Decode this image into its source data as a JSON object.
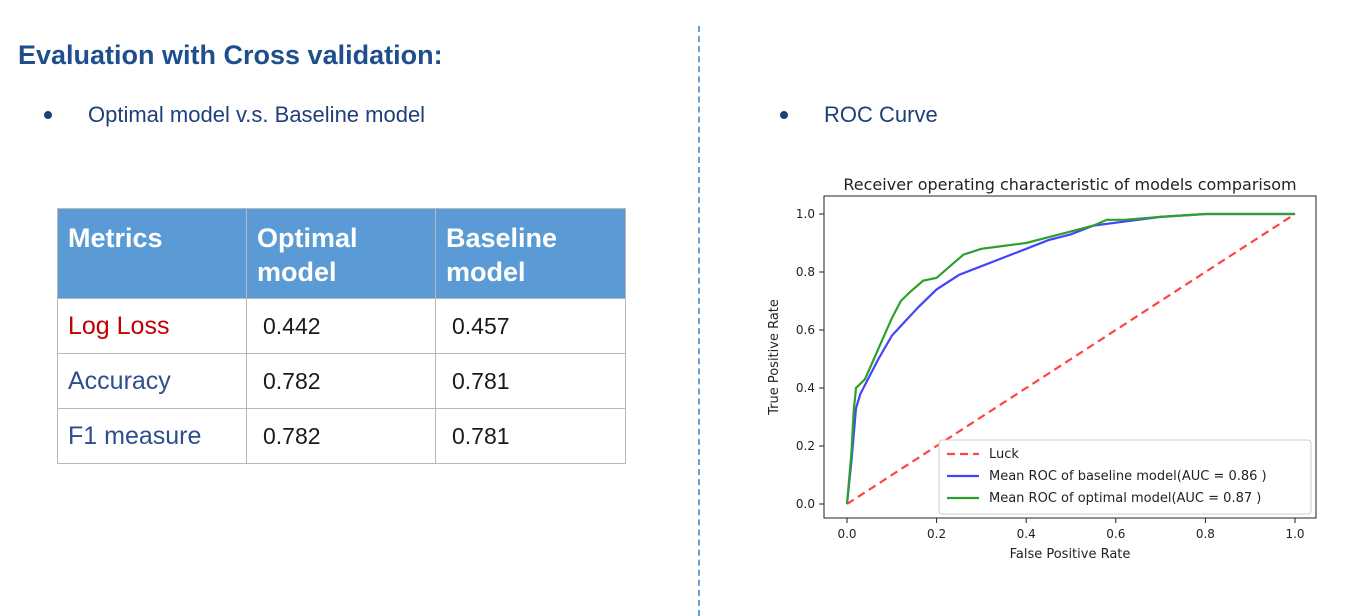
{
  "heading": "Evaluation with Cross validation:",
  "left_bullet": "Optimal model v.s. Baseline model",
  "right_bullet": "ROC Curve",
  "table": {
    "headers": [
      "Metrics",
      "Optimal model",
      "Baseline model"
    ],
    "rows": [
      {
        "metric": "Log Loss",
        "optimal": "0.442",
        "baseline": "0.457"
      },
      {
        "metric": "Accuracy",
        "optimal": "0.782",
        "baseline": "0.781"
      },
      {
        "metric": "F1 measure",
        "optimal": "0.782",
        "baseline": "0.781"
      }
    ],
    "colors": {
      "header_bg": "#5b9bd5",
      "highlight_metric": "#c00000",
      "metric_text": "#2e4e8c"
    }
  },
  "chart_data": {
    "type": "line",
    "title": "Receiver operating characteristic of models comparisom",
    "xlabel": "False Positive Rate",
    "ylabel": "True Positive Rate",
    "xlim": [
      0.0,
      1.0
    ],
    "ylim": [
      0.0,
      1.0
    ],
    "xticks": [
      "0.0",
      "0.2",
      "0.4",
      "0.6",
      "0.8",
      "1.0"
    ],
    "yticks": [
      "0.0",
      "0.2",
      "0.4",
      "0.6",
      "0.8",
      "1.0"
    ],
    "grid": false,
    "legend_position": "lower-right",
    "series": [
      {
        "name": "Luck",
        "color": "#ff4444",
        "style": "dashed",
        "x": [
          0.0,
          1.0
        ],
        "y": [
          0.0,
          1.0
        ]
      },
      {
        "name": "Mean ROC of baseline model(AUC = 0.86 )",
        "color": "#4444ff",
        "style": "solid",
        "x": [
          0.0,
          0.01,
          0.02,
          0.03,
          0.05,
          0.07,
          0.1,
          0.13,
          0.16,
          0.2,
          0.25,
          0.3,
          0.35,
          0.4,
          0.45,
          0.5,
          0.55,
          0.6,
          0.7,
          0.8,
          0.9,
          1.0
        ],
        "y": [
          0.0,
          0.15,
          0.33,
          0.38,
          0.44,
          0.5,
          0.58,
          0.63,
          0.68,
          0.74,
          0.79,
          0.82,
          0.85,
          0.88,
          0.91,
          0.93,
          0.96,
          0.97,
          0.99,
          1.0,
          1.0,
          1.0
        ]
      },
      {
        "name": "Mean ROC of optimal model(AUC = 0.87 )",
        "color": "#2ca02c",
        "style": "solid",
        "x": [
          0.0,
          0.01,
          0.015,
          0.02,
          0.04,
          0.06,
          0.08,
          0.1,
          0.12,
          0.14,
          0.17,
          0.2,
          0.23,
          0.26,
          0.3,
          0.35,
          0.4,
          0.45,
          0.5,
          0.55,
          0.58,
          0.62,
          0.7,
          0.8,
          0.9,
          1.0
        ],
        "y": [
          0.0,
          0.18,
          0.32,
          0.4,
          0.43,
          0.5,
          0.57,
          0.64,
          0.7,
          0.73,
          0.77,
          0.78,
          0.82,
          0.86,
          0.88,
          0.89,
          0.9,
          0.92,
          0.94,
          0.96,
          0.98,
          0.98,
          0.99,
          1.0,
          1.0,
          1.0
        ]
      }
    ]
  }
}
